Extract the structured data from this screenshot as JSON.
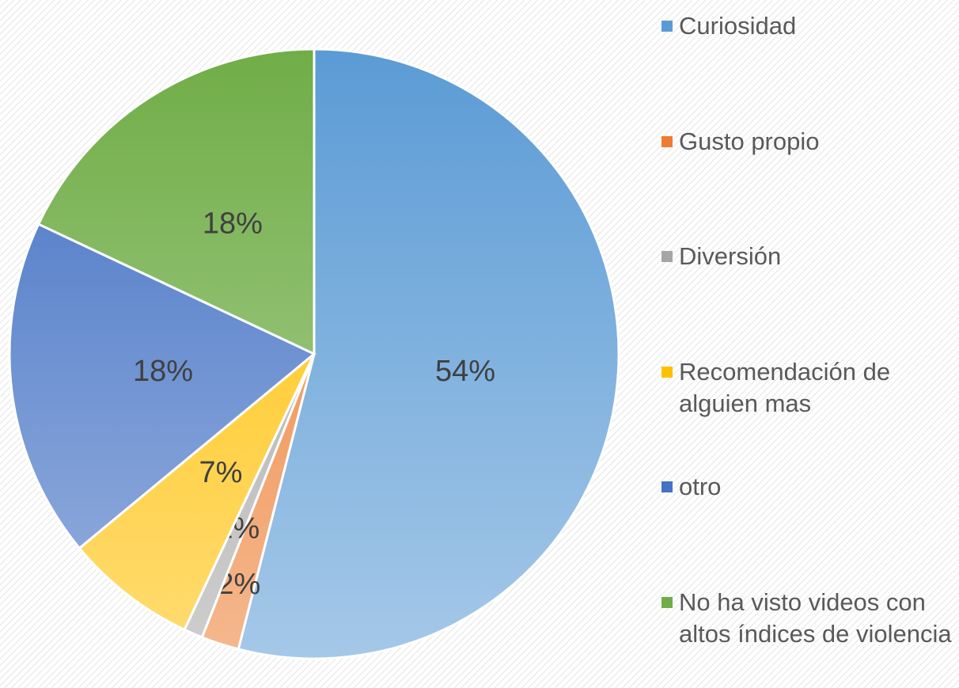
{
  "chart_data": {
    "type": "pie",
    "categories": [
      "Curiosidad",
      "Gusto propio",
      "Diversión",
      "Recomendación de alguien mas",
      "otro",
      "No ha visto videos con altos índices de violencia"
    ],
    "values": [
      54,
      2,
      1,
      7,
      18,
      18
    ],
    "value_labels": [
      "54%",
      "2%",
      "1%",
      "7%",
      "18%",
      "18%"
    ],
    "colors": [
      "#5b9bd5",
      "#ed7d31",
      "#a5a5a5",
      "#ffc000",
      "#4472c4",
      "#70ad47"
    ],
    "legend": "right"
  }
}
